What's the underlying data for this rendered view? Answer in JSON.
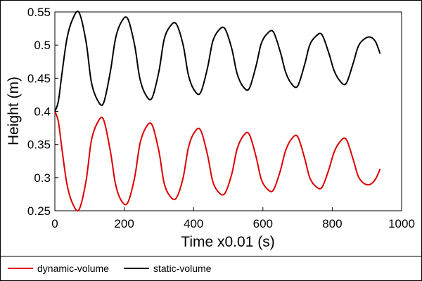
{
  "chart_data": {
    "type": "line",
    "xlabel": "Time x0.01 (s)",
    "ylabel": "Height (m)",
    "xlim": [
      0,
      1000
    ],
    "ylim": [
      0.25,
      0.55
    ],
    "xticks": [
      0,
      200,
      400,
      600,
      800,
      1000
    ],
    "yticks": [
      0.25,
      0.3,
      0.35,
      0.4,
      0.45,
      0.5,
      0.55
    ],
    "xtick_labels": [
      "0",
      "200",
      "400",
      "600",
      "800",
      "1000"
    ],
    "ytick_labels": [
      "0.25",
      "0.3",
      "0.35",
      "0.4",
      "0.45",
      "0.5",
      "0.55"
    ],
    "grid": false,
    "legend_position": "bottom",
    "series": [
      {
        "name": "dynamic-volume",
        "color": "#dd0000",
        "x": [
          0,
          10,
          20,
          35,
          52,
          70,
          90,
          105,
          122,
          140,
          160,
          175,
          192,
          210,
          230,
          245,
          262,
          280,
          300,
          315,
          332,
          350,
          370,
          385,
          402,
          420,
          440,
          455,
          472,
          490,
          510,
          525,
          542,
          560,
          580,
          595,
          612,
          630,
          650,
          665,
          682,
          700,
          720,
          735,
          752,
          770,
          790,
          805,
          822,
          840,
          860,
          875,
          892,
          910,
          925,
          938
        ],
        "values": [
          0.4,
          0.385,
          0.345,
          0.29,
          0.26,
          0.252,
          0.295,
          0.355,
          0.382,
          0.388,
          0.34,
          0.29,
          0.265,
          0.262,
          0.3,
          0.35,
          0.375,
          0.38,
          0.34,
          0.292,
          0.272,
          0.269,
          0.3,
          0.345,
          0.368,
          0.372,
          0.335,
          0.295,
          0.278,
          0.276,
          0.305,
          0.342,
          0.362,
          0.366,
          0.332,
          0.298,
          0.283,
          0.281,
          0.31,
          0.34,
          0.358,
          0.362,
          0.33,
          0.3,
          0.287,
          0.285,
          0.312,
          0.338,
          0.354,
          0.358,
          0.328,
          0.302,
          0.291,
          0.29,
          0.298,
          0.313
        ]
      },
      {
        "name": "static-volume",
        "color": "#000000",
        "x": [
          0,
          10,
          20,
          35,
          52,
          70,
          90,
          105,
          122,
          140,
          160,
          175,
          192,
          210,
          230,
          245,
          262,
          280,
          300,
          315,
          332,
          350,
          370,
          385,
          402,
          420,
          440,
          455,
          472,
          490,
          510,
          525,
          542,
          560,
          580,
          595,
          612,
          630,
          650,
          665,
          682,
          700,
          720,
          735,
          752,
          770,
          790,
          805,
          822,
          840,
          860,
          875,
          892,
          910,
          925,
          938
        ],
        "values": [
          0.4,
          0.415,
          0.455,
          0.51,
          0.54,
          0.549,
          0.505,
          0.445,
          0.418,
          0.412,
          0.46,
          0.51,
          0.535,
          0.54,
          0.5,
          0.45,
          0.425,
          0.42,
          0.46,
          0.508,
          0.528,
          0.532,
          0.5,
          0.455,
          0.432,
          0.428,
          0.465,
          0.505,
          0.522,
          0.525,
          0.495,
          0.458,
          0.438,
          0.434,
          0.468,
          0.502,
          0.517,
          0.52,
          0.49,
          0.46,
          0.442,
          0.438,
          0.47,
          0.5,
          0.513,
          0.516,
          0.488,
          0.462,
          0.446,
          0.442,
          0.472,
          0.498,
          0.509,
          0.512,
          0.505,
          0.487
        ]
      }
    ]
  }
}
